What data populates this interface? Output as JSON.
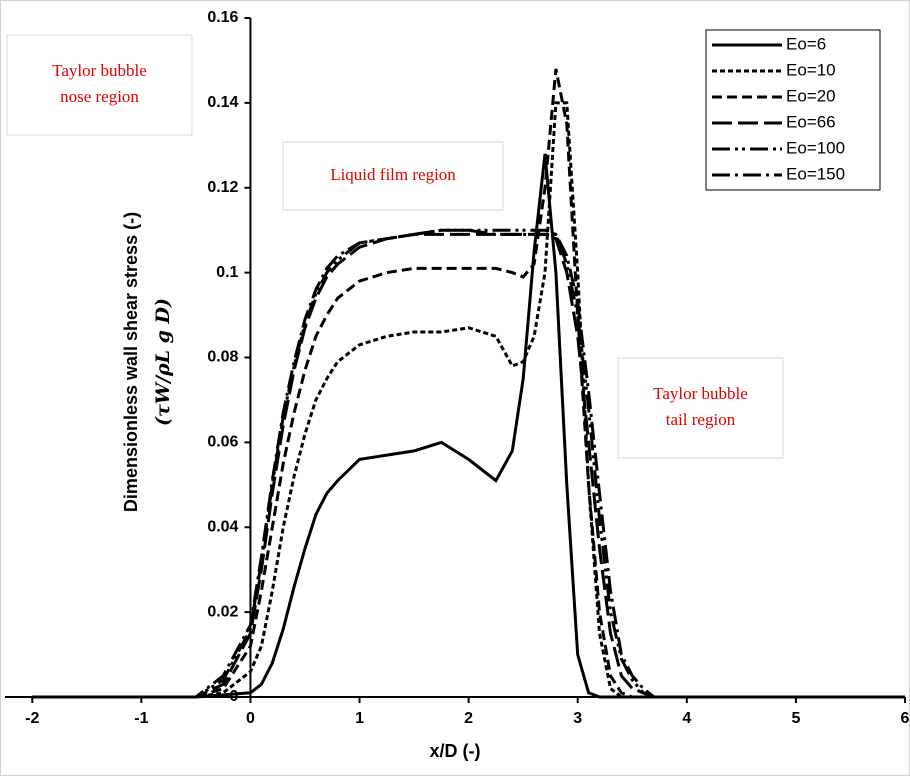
{
  "chart_data": {
    "type": "line",
    "xlabel": "x/D (-)",
    "ylabel": "Dimensionless wall shear stress (-)",
    "ylabel_formula": "(τW/ρL g D)",
    "x": [
      -2,
      -1,
      -0.5,
      -0.25,
      0,
      0.1,
      0.2,
      0.3,
      0.4,
      0.5,
      0.6,
      0.7,
      0.8,
      1,
      1.25,
      1.5,
      1.75,
      2,
      2.25,
      2.4,
      2.5,
      2.6,
      2.7,
      2.8,
      2.9,
      3,
      3.1,
      3.2,
      3.3,
      3.4,
      3.5,
      3.6,
      3.7,
      4,
      5,
      6
    ],
    "series": [
      {
        "name": "Eo=6",
        "color": "#000000",
        "linestyle": "solid",
        "values": [
          0,
          0,
          0,
          0.0005,
          0.001,
          0.003,
          0.008,
          0.016,
          0.026,
          0.035,
          0.043,
          0.048,
          0.051,
          0.056,
          0.057,
          0.058,
          0.06,
          0.056,
          0.051,
          0.058,
          0.075,
          0.105,
          0.128,
          0.1,
          0.05,
          0.01,
          0.001,
          0,
          0,
          0,
          0,
          0,
          0,
          0,
          0,
          0
        ]
      },
      {
        "name": "Eo=10",
        "color": "#000000",
        "linestyle": "dotted",
        "values": [
          0,
          0,
          0,
          0.001,
          0.006,
          0.012,
          0.025,
          0.04,
          0.052,
          0.062,
          0.07,
          0.075,
          0.079,
          0.083,
          0.085,
          0.086,
          0.086,
          0.087,
          0.085,
          0.078,
          0.079,
          0.085,
          0.1,
          0.14,
          0.14,
          0.1,
          0.05,
          0.015,
          0.002,
          0,
          0,
          0,
          0,
          0,
          0,
          0
        ]
      },
      {
        "name": "Eo=20",
        "color": "#000000",
        "linestyle": "dashed",
        "values": [
          0,
          0,
          0,
          0.002,
          0.012,
          0.025,
          0.04,
          0.055,
          0.067,
          0.077,
          0.085,
          0.09,
          0.094,
          0.098,
          0.1,
          0.101,
          0.101,
          0.101,
          0.101,
          0.1,
          0.099,
          0.102,
          0.12,
          0.148,
          0.135,
          0.09,
          0.05,
          0.02,
          0.005,
          0.001,
          0,
          0,
          0,
          0,
          0,
          0
        ]
      },
      {
        "name": "Eo=66",
        "color": "#000000",
        "linestyle": "longdash",
        "values": [
          0,
          0,
          0,
          0.003,
          0.015,
          0.03,
          0.048,
          0.064,
          0.077,
          0.087,
          0.094,
          0.099,
          0.102,
          0.106,
          0.108,
          0.109,
          0.109,
          0.109,
          0.109,
          0.109,
          0.109,
          0.109,
          0.109,
          0.108,
          0.1,
          0.085,
          0.06,
          0.035,
          0.015,
          0.005,
          0.002,
          0.001,
          0,
          0,
          0,
          0
        ]
      },
      {
        "name": "Eo=100",
        "color": "#000000",
        "linestyle": "dashdotdot",
        "values": [
          0,
          0,
          0,
          0.004,
          0.016,
          0.032,
          0.05,
          0.066,
          0.078,
          0.088,
          0.095,
          0.1,
          0.103,
          0.107,
          0.108,
          0.109,
          0.11,
          0.11,
          0.11,
          0.11,
          0.11,
          0.11,
          0.11,
          0.109,
          0.102,
          0.09,
          0.068,
          0.042,
          0.02,
          0.009,
          0.004,
          0.001,
          0,
          0,
          0,
          0
        ]
      },
      {
        "name": "Eo=150",
        "color": "#000000",
        "linestyle": "dashdot",
        "values": [
          0,
          0,
          0,
          0.005,
          0.017,
          0.033,
          0.051,
          0.067,
          0.079,
          0.089,
          0.096,
          0.101,
          0.104,
          0.107,
          0.108,
          0.109,
          0.11,
          0.11,
          0.109,
          0.109,
          0.109,
          0.109,
          0.109,
          0.109,
          0.104,
          0.093,
          0.072,
          0.048,
          0.025,
          0.01,
          0.005,
          0.002,
          0,
          0,
          0,
          0
        ]
      }
    ],
    "xlim": [
      -2.25,
      6
    ],
    "xticks": [
      -2,
      -1,
      0,
      1,
      2,
      3,
      4,
      5,
      6
    ],
    "ylim": [
      0,
      0.16
    ],
    "yticks": [
      0,
      0.02,
      0.04,
      0.06,
      0.08,
      0.1,
      0.12,
      0.14,
      0.16
    ],
    "legend": "top-right",
    "annotations": [
      {
        "lines": [
          "Taylor bubble",
          "nose region"
        ],
        "color": "#e00000"
      },
      {
        "lines": [
          "Liquid film region"
        ],
        "color": "#e00000"
      },
      {
        "lines": [
          "Taylor bubble",
          "tail region"
        ],
        "color": "#e00000"
      }
    ]
  }
}
